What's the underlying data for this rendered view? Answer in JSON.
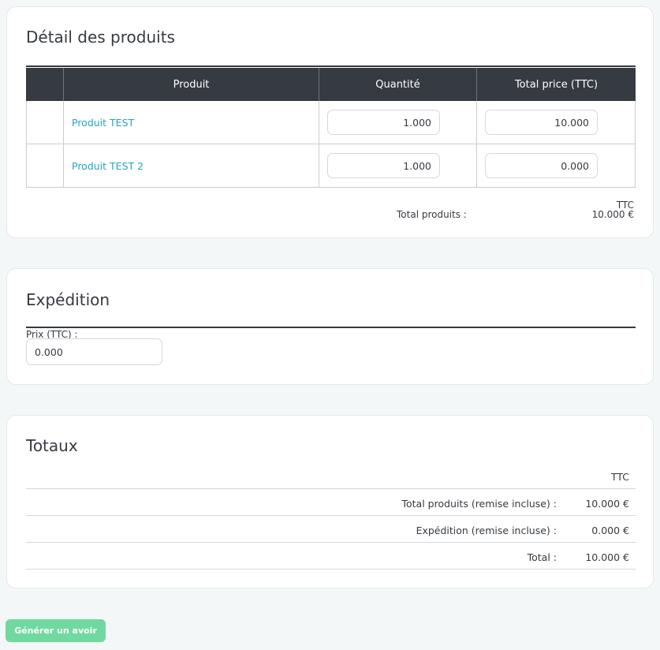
{
  "products_section": {
    "title": "Détail des produits",
    "columns": [
      "",
      "Produit",
      "Quantité",
      "Total price (TTC)"
    ],
    "rows": [
      {
        "name": "Produit TEST",
        "quantity": "1.000",
        "total": "10.000"
      },
      {
        "name": "Produit TEST 2",
        "quantity": "1.000",
        "total": "0.000"
      }
    ],
    "ttc_label": "TTC",
    "total_label": "Total produits :",
    "total_value": "10.000 €"
  },
  "shipping_section": {
    "title": "Expédition",
    "price_label": "Prix (TTC) :",
    "price_value": "0.000"
  },
  "totals_section": {
    "title": "Totaux",
    "ttc_label": "TTC",
    "lines": [
      {
        "label": "Total produits (remise incluse) :",
        "value": "10.000 €"
      },
      {
        "label": "Expédition (remise incluse) :",
        "value": "0.000 €"
      },
      {
        "label": "Total :",
        "value": "10.000 €"
      }
    ]
  },
  "actions": {
    "generate_label": "Générer un avoir"
  },
  "colors": {
    "header_dark": "#363a41",
    "link": "#25a3c4",
    "button": "#70d9a0"
  }
}
